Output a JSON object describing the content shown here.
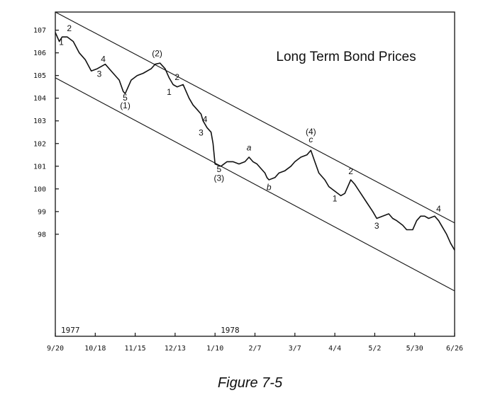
{
  "figure": {
    "caption": "Figure 7-5"
  },
  "chart_data": {
    "type": "line",
    "title": "Long Term Bond Prices",
    "xlabel": "",
    "ylabel": "",
    "y_ticks": [
      98,
      99,
      100,
      101,
      102,
      103,
      104,
      105,
      106,
      107
    ],
    "y_tick_labels": [
      "98",
      "99",
      "100",
      "101",
      "102",
      "103",
      "104",
      "105",
      "106",
      "107"
    ],
    "ylim": [
      93.5,
      107.8
    ],
    "x_ticks": [
      "9/20",
      "10/18",
      "11/15",
      "12/13",
      "1/10",
      "2/7",
      "3/7",
      "4/4",
      "5/2",
      "5/30",
      "6/26"
    ],
    "xlim": [
      0,
      10
    ],
    "year_labels": [
      {
        "text": "1977",
        "x": 0
      },
      {
        "text": "1978",
        "x": 4
      }
    ],
    "grid": false,
    "series": [
      {
        "values": [
          [
            0.0,
            106.9
          ],
          [
            0.1,
            106.5
          ],
          [
            0.17,
            106.7
          ],
          [
            0.3,
            106.7
          ],
          [
            0.45,
            106.5
          ],
          [
            0.6,
            106.0
          ],
          [
            0.75,
            105.7
          ],
          [
            0.9,
            105.2
          ],
          [
            1.05,
            105.3
          ],
          [
            1.25,
            105.5
          ],
          [
            1.45,
            105.1
          ],
          [
            1.6,
            104.8
          ],
          [
            1.7,
            104.3
          ],
          [
            1.75,
            104.2
          ],
          [
            1.9,
            104.8
          ],
          [
            2.05,
            105.0
          ],
          [
            2.2,
            105.1
          ],
          [
            2.4,
            105.3
          ],
          [
            2.5,
            105.5
          ],
          [
            2.62,
            105.55
          ],
          [
            2.75,
            105.3
          ],
          [
            2.85,
            104.9
          ],
          [
            2.95,
            104.6
          ],
          [
            3.05,
            104.5
          ],
          [
            3.2,
            104.6
          ],
          [
            3.35,
            104.0
          ],
          [
            3.45,
            103.7
          ],
          [
            3.55,
            103.5
          ],
          [
            3.65,
            103.3
          ],
          [
            3.7,
            103.0
          ],
          [
            3.8,
            102.7
          ],
          [
            3.9,
            102.5
          ],
          [
            3.95,
            102.0
          ],
          [
            4.0,
            101.1
          ],
          [
            4.15,
            101.0
          ],
          [
            4.3,
            101.2
          ],
          [
            4.45,
            101.2
          ],
          [
            4.6,
            101.1
          ],
          [
            4.75,
            101.2
          ],
          [
            4.85,
            101.4
          ],
          [
            4.95,
            101.2
          ],
          [
            5.05,
            101.1
          ],
          [
            5.15,
            100.9
          ],
          [
            5.25,
            100.7
          ],
          [
            5.3,
            100.5
          ],
          [
            5.35,
            100.4
          ],
          [
            5.5,
            100.5
          ],
          [
            5.6,
            100.7
          ],
          [
            5.75,
            100.8
          ],
          [
            5.9,
            101.0
          ],
          [
            6.0,
            101.2
          ],
          [
            6.15,
            101.4
          ],
          [
            6.3,
            101.5
          ],
          [
            6.4,
            101.7
          ],
          [
            6.5,
            101.2
          ],
          [
            6.6,
            100.7
          ],
          [
            6.75,
            100.4
          ],
          [
            6.85,
            100.1
          ],
          [
            7.0,
            99.9
          ],
          [
            7.15,
            99.7
          ],
          [
            7.25,
            99.8
          ],
          [
            7.4,
            100.4
          ],
          [
            7.5,
            100.2
          ],
          [
            7.65,
            99.8
          ],
          [
            7.8,
            99.4
          ],
          [
            7.95,
            99.0
          ],
          [
            8.05,
            98.7
          ],
          [
            8.2,
            98.8
          ],
          [
            8.35,
            98.9
          ],
          [
            8.45,
            98.7
          ],
          [
            8.55,
            98.6
          ],
          [
            8.7,
            98.4
          ],
          [
            8.8,
            98.2
          ],
          [
            8.95,
            98.2
          ],
          [
            9.05,
            98.6
          ],
          [
            9.15,
            98.8
          ],
          [
            9.25,
            98.8
          ],
          [
            9.35,
            98.7
          ],
          [
            9.5,
            98.8
          ],
          [
            9.6,
            98.6
          ],
          [
            9.7,
            98.3
          ],
          [
            9.8,
            98.0
          ],
          [
            9.9,
            97.6
          ],
          [
            10.0,
            97.3
          ]
        ]
      }
    ],
    "channel_lines": [
      {
        "from": [
          0,
          107.8
        ],
        "to": [
          10,
          98.5
        ]
      },
      {
        "from": [
          0,
          104.9
        ],
        "to": [
          10,
          95.5
        ]
      }
    ],
    "annotations": [
      {
        "text": "1",
        "x": 0.15,
        "y": 106.35
      },
      {
        "text": "2",
        "x": 0.35,
        "y": 106.95
      },
      {
        "text": "3",
        "x": 1.1,
        "y": 104.95
      },
      {
        "text": "4",
        "x": 1.2,
        "y": 105.6
      },
      {
        "text": "5",
        "x": 1.75,
        "y": 103.9
      },
      {
        "text": "(1)",
        "x": 1.75,
        "y": 103.55
      },
      {
        "text": "(2)",
        "x": 2.55,
        "y": 105.85
      },
      {
        "text": "2",
        "x": 3.05,
        "y": 104.8
      },
      {
        "text": "1",
        "x": 2.85,
        "y": 104.15
      },
      {
        "text": "4",
        "x": 3.75,
        "y": 102.95
      },
      {
        "text": "3",
        "x": 3.65,
        "y": 102.35
      },
      {
        "text": "5",
        "x": 4.1,
        "y": 100.75
      },
      {
        "text": "(3)",
        "x": 4.1,
        "y": 100.35
      },
      {
        "text": "a",
        "x": 4.85,
        "y": 101.7
      },
      {
        "text": "b",
        "x": 5.35,
        "y": 99.95
      },
      {
        "text": "(4)",
        "x": 6.4,
        "y": 102.4
      },
      {
        "text": "c",
        "x": 6.4,
        "y": 102.05
      },
      {
        "text": "2",
        "x": 7.4,
        "y": 100.65
      },
      {
        "text": "1",
        "x": 7.0,
        "y": 99.45
      },
      {
        "text": "3",
        "x": 8.05,
        "y": 98.25
      },
      {
        "text": "4",
        "x": 9.6,
        "y": 99.0
      }
    ]
  }
}
